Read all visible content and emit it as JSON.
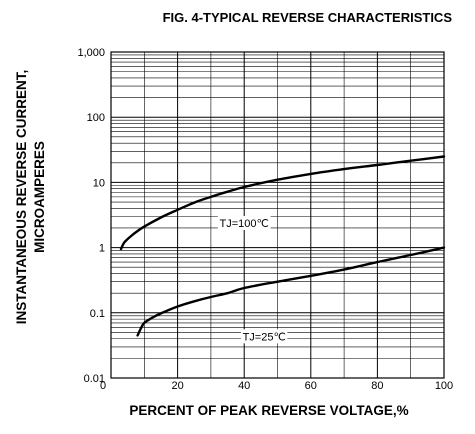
{
  "chart_data": {
    "type": "line",
    "title": "FIG. 4-TYPICAL REVERSE CHARACTERISTICS",
    "xlabel": "PERCENT OF PEAK REVERSE VOLTAGE,%",
    "ylabel_line1": "INSTANTANEOUS REVERSE CURRENT,",
    "ylabel_line2": "MICROAMPERES",
    "xlim": [
      0,
      100
    ],
    "ylim": [
      0.01,
      1000
    ],
    "yscale": "log",
    "grid": true,
    "x_ticks": [
      {
        "value": 0,
        "label": "0"
      },
      {
        "value": 20,
        "label": "20"
      },
      {
        "value": 40,
        "label": "40"
      },
      {
        "value": 60,
        "label": "60"
      },
      {
        "value": 80,
        "label": "80"
      },
      {
        "value": 100,
        "label": "100"
      }
    ],
    "y_ticks": [
      {
        "value": 0.01,
        "label": "0.01"
      },
      {
        "value": 0.1,
        "label": "0.1"
      },
      {
        "value": 1,
        "label": "1"
      },
      {
        "value": 10,
        "label": "10"
      },
      {
        "value": 100,
        "label": "100"
      },
      {
        "value": 1000,
        "label": "1,000"
      }
    ],
    "series": [
      {
        "name": "TJ=100℃",
        "label_at": {
          "x": 40,
          "y": 2.3
        },
        "points": [
          {
            "x": 3,
            "y": 0.95
          },
          {
            "x": 4,
            "y": 1.2
          },
          {
            "x": 6,
            "y": 1.5
          },
          {
            "x": 8,
            "y": 1.8
          },
          {
            "x": 10,
            "y": 2.1
          },
          {
            "x": 15,
            "y": 2.9
          },
          {
            "x": 20,
            "y": 3.8
          },
          {
            "x": 25,
            "y": 4.9
          },
          {
            "x": 30,
            "y": 6.0
          },
          {
            "x": 35,
            "y": 7.2
          },
          {
            "x": 40,
            "y": 8.5
          },
          {
            "x": 50,
            "y": 11
          },
          {
            "x": 60,
            "y": 13.5
          },
          {
            "x": 70,
            "y": 16
          },
          {
            "x": 80,
            "y": 18.5
          },
          {
            "x": 90,
            "y": 21.5
          },
          {
            "x": 100,
            "y": 25
          }
        ]
      },
      {
        "name": "TJ=25℃",
        "label_at": {
          "x": 46,
          "y": 0.042
        },
        "points": [
          {
            "x": 8,
            "y": 0.045
          },
          {
            "x": 9,
            "y": 0.058
          },
          {
            "x": 10,
            "y": 0.07
          },
          {
            "x": 12,
            "y": 0.082
          },
          {
            "x": 15,
            "y": 0.098
          },
          {
            "x": 20,
            "y": 0.125
          },
          {
            "x": 25,
            "y": 0.15
          },
          {
            "x": 30,
            "y": 0.175
          },
          {
            "x": 35,
            "y": 0.2
          },
          {
            "x": 40,
            "y": 0.24
          },
          {
            "x": 50,
            "y": 0.3
          },
          {
            "x": 60,
            "y": 0.37
          },
          {
            "x": 70,
            "y": 0.46
          },
          {
            "x": 80,
            "y": 0.6
          },
          {
            "x": 90,
            "y": 0.77
          },
          {
            "x": 100,
            "y": 1.0
          }
        ]
      }
    ]
  }
}
